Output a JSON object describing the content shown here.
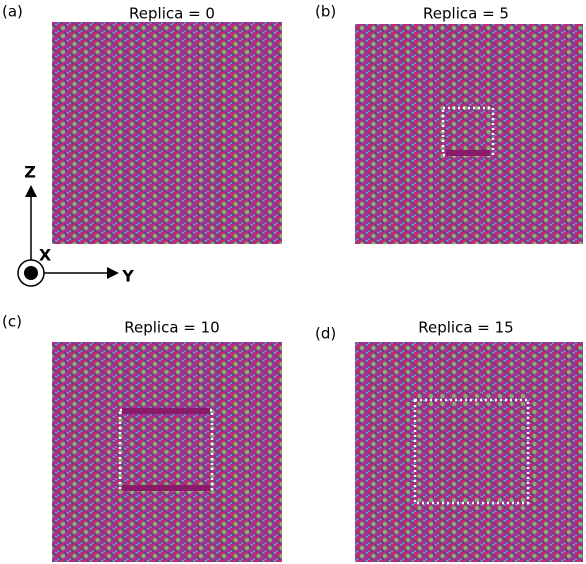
{
  "panels": [
    {
      "label": "(a)",
      "title": "Replica = 0"
    },
    {
      "label": "(b)",
      "title": "Replica = 5"
    },
    {
      "label": "(c)",
      "title": "Replica = 10"
    },
    {
      "label": "(d)",
      "title": "Replica = 15"
    }
  ],
  "axes": {
    "z": "Z",
    "x": "X",
    "y": "Y"
  }
}
